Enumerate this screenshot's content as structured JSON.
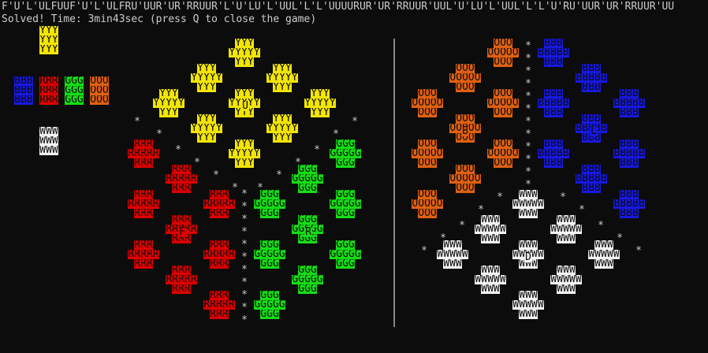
{
  "terminal": {
    "move_sequence": "F'U'L'ULFUUF'U'L'ULFRU'UUR'UR'RRUUR'L'U'LU'L'UUL'L'L'UUUURUR'UR'RRUUR'UUL'U'LU'L'UUL'L'L'U'RU'UUR'UR'RRUUR'UU",
    "status_line": "Solved! Time: 3min43sec (press Q to close the game)"
  },
  "colors": {
    "Y": "#f2e500",
    "R": "#dc0000",
    "G": "#16dc16",
    "O": "#e06010",
    "B": "#1818e0",
    "W": "#f2f2f2"
  },
  "legend": {
    "Y": "YYY",
    "R": "RRR",
    "G": "GGG",
    "O": "OOO",
    "B": "BBB",
    "W": "WWW"
  },
  "face_labels": {
    "up": "U",
    "front": "F",
    "right": "R",
    "back": "B",
    "down": "D",
    "left": "L"
  }
}
